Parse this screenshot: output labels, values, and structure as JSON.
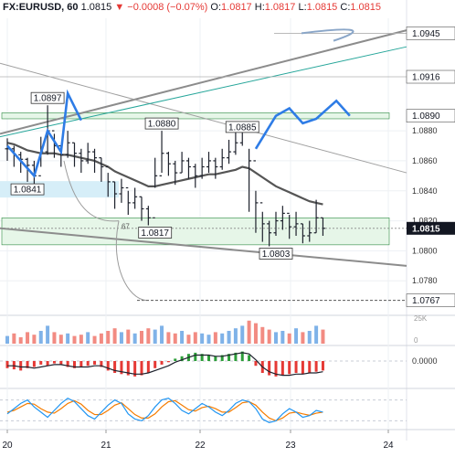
{
  "header": {
    "symbol": "FX:EURUSD, 60",
    "last": "1.0815",
    "change": "−0.0008 (−0.07%)",
    "o_label": "O:",
    "o": "1.0817",
    "h_label": "H:",
    "h": "1.0817",
    "l_label": "L:",
    "l": "1.0815",
    "c_label": "C:",
    "c": "1.0815",
    "arrow": "▼"
  },
  "colors": {
    "candle": "#1e222d",
    "ma": "#555555",
    "zigzag": "#2e7ce6",
    "zone_fill": "#e6f6e8",
    "zone_border": "#2f8a44",
    "blue_zone": "#d6eef8",
    "channel": "#8c8c8c",
    "teal_line": "#26a69a",
    "vol_red": "#f28b82",
    "vol_blue": "#7fb2e8",
    "hist_red": "#e53935",
    "hist_green": "#2e9e3a",
    "stoch_blue": "#2196f3",
    "stoch_orange": "#f57c00"
  },
  "chart_data": {
    "type": "line",
    "title": "FX:EURUSD, 60",
    "x_ticks": [
      "20",
      "21",
      "22",
      "23",
      "24"
    ],
    "y_ticks": [
      "1.0880",
      "1.0860",
      "1.0840",
      "1.0820",
      "1.0800",
      "1.0780"
    ],
    "price_badges": [
      "1.0945",
      "1.0916",
      "1.0890",
      "1.0815",
      "1.0767"
    ],
    "current_price": "1.0815",
    "ylim": [
      1.0757,
      1.0955
    ],
    "candles": {
      "close": [
        1.0868,
        1.0864,
        1.0861,
        1.0857,
        1.085,
        1.0866,
        1.088,
        1.087,
        1.0864,
        1.0872,
        1.0865,
        1.086,
        1.0866,
        1.0862,
        1.0856,
        1.0846,
        1.0838,
        1.0842,
        1.0832,
        1.0836,
        1.0828,
        1.0822,
        1.085,
        1.0865,
        1.0858,
        1.0852,
        1.086,
        1.0856,
        1.085,
        1.0856,
        1.086,
        1.0856,
        1.0862,
        1.0866,
        1.0872,
        1.088,
        1.086,
        1.0832,
        1.0818,
        1.0812,
        1.082,
        1.0825,
        1.0816,
        1.0818,
        1.081,
        1.0812,
        1.0822,
        1.0815
      ],
      "high": [
        1.0875,
        1.087,
        1.0866,
        1.0862,
        1.086,
        1.0876,
        1.0897,
        1.0878,
        1.087,
        1.088,
        1.0872,
        1.0868,
        1.0872,
        1.0868,
        1.0862,
        1.0852,
        1.0846,
        1.0848,
        1.084,
        1.0842,
        1.0836,
        1.083,
        1.0862,
        1.088,
        1.0866,
        1.086,
        1.0866,
        1.0862,
        1.0858,
        1.0862,
        1.0866,
        1.0862,
        1.0868,
        1.0874,
        1.088,
        1.0885,
        1.0868,
        1.084,
        1.0826,
        1.082,
        1.0826,
        1.083,
        1.0824,
        1.0826,
        1.0818,
        1.082,
        1.0834,
        1.0822
      ],
      "low": [
        1.086,
        1.0856,
        1.0852,
        1.0846,
        1.0844,
        1.0856,
        1.0864,
        1.0862,
        1.0856,
        1.0862,
        1.0856,
        1.0852,
        1.0858,
        1.0852,
        1.0846,
        1.0836,
        1.0828,
        1.0832,
        1.0824,
        1.0828,
        1.082,
        1.0817,
        1.0842,
        1.0852,
        1.085,
        1.0844,
        1.0852,
        1.0848,
        1.0842,
        1.0848,
        1.0852,
        1.0848,
        1.0854,
        1.0858,
        1.0864,
        1.087,
        1.0826,
        1.0812,
        1.0806,
        1.0803,
        1.081,
        1.0814,
        1.0808,
        1.081,
        1.0805,
        1.0806,
        1.0812,
        1.081
      ]
    },
    "series": [
      {
        "values": [
          1.0872,
          1.0871,
          1.0869,
          1.0867,
          1.0866,
          1.0865,
          1.0865,
          1.0865,
          1.0864,
          1.0864,
          1.0863,
          1.0862,
          1.0861,
          1.086,
          1.0858,
          1.0856,
          1.0853,
          1.0851,
          1.0849,
          1.0847,
          1.0845,
          1.0843,
          1.0843,
          1.0844,
          1.0845,
          1.0846,
          1.0847,
          1.0848,
          1.0849,
          1.085,
          1.0851,
          1.0851,
          1.0852,
          1.0853,
          1.0854,
          1.0856,
          1.0855,
          1.0852,
          1.0849,
          1.0846,
          1.0843,
          1.0841,
          1.0839,
          1.0837,
          1.0835,
          1.0833,
          1.0832,
          1.0831
        ]
      }
    ],
    "zigzag": [
      [
        0,
        1.087
      ],
      [
        4,
        1.085
      ],
      [
        6,
        1.088
      ],
      [
        8,
        1.0866
      ],
      [
        9,
        1.0905
      ],
      [
        11,
        1.0887
      ],
      [
        37,
        1.0868
      ],
      [
        40,
        1.089
      ],
      [
        42,
        1.0895
      ],
      [
        44,
        1.0885
      ],
      [
        46,
        1.0888
      ],
      [
        49,
        1.09
      ],
      [
        51,
        1.089
      ]
    ],
    "annotations": [
      "1.0897",
      "1.0880",
      "1.0885",
      "1.0841",
      "1.0817",
      "1.0803",
      "67"
    ],
    "volume": {
      "axis_labels": [
        "25K",
        "0"
      ],
      "values": [
        6,
        8,
        5,
        9,
        7,
        10,
        14,
        9,
        7,
        8,
        6,
        7,
        9,
        6,
        8,
        10,
        12,
        9,
        11,
        8,
        10,
        12,
        11,
        14,
        9,
        8,
        10,
        7,
        9,
        8,
        7,
        9,
        8,
        10,
        12,
        14,
        18,
        16,
        13,
        11,
        9,
        10,
        8,
        12,
        9,
        10,
        14,
        11
      ]
    },
    "oscillator": {
      "axis_label": "0.0000",
      "histogram": [
        -6,
        -7,
        -8,
        -6,
        -5,
        -3,
        -4,
        -2,
        -3,
        -5,
        -6,
        -5,
        -4,
        -3,
        -5,
        -8,
        -10,
        -11,
        -12,
        -13,
        -12,
        -10,
        -6,
        -3,
        -1,
        2,
        4,
        6,
        7,
        6,
        5,
        4,
        5,
        6,
        7,
        8,
        5,
        -4,
        -10,
        -12,
        -13,
        -12,
        -11,
        -10,
        -11,
        -10,
        -9,
        -8
      ],
      "signal": [
        -4,
        -4,
        -5,
        -5,
        -6,
        -5,
        -4,
        -3,
        -3,
        -4,
        -5,
        -5,
        -5,
        -4,
        -4,
        -6,
        -8,
        -9,
        -10,
        -11,
        -11,
        -10,
        -8,
        -6,
        -4,
        -1,
        1,
        3,
        5,
        5,
        5,
        4,
        4,
        5,
        6,
        7,
        6,
        1,
        -5,
        -9,
        -11,
        -12,
        -12,
        -11,
        -11,
        -10,
        -10,
        -9
      ]
    },
    "stochastic": {
      "k": [
        40,
        55,
        70,
        80,
        60,
        45,
        30,
        50,
        70,
        85,
        75,
        55,
        35,
        25,
        45,
        65,
        80,
        70,
        40,
        25,
        20,
        35,
        60,
        80,
        85,
        70,
        50,
        40,
        55,
        70,
        60,
        45,
        35,
        50,
        70,
        80,
        75,
        55,
        25,
        15,
        20,
        40,
        55,
        45,
        30,
        35,
        50,
        45
      ],
      "d": [
        45,
        50,
        60,
        70,
        68,
        55,
        45,
        42,
        55,
        70,
        78,
        68,
        50,
        38,
        38,
        50,
        65,
        72,
        55,
        38,
        28,
        28,
        40,
        60,
        75,
        78,
        65,
        52,
        48,
        58,
        62,
        55,
        45,
        45,
        58,
        72,
        75,
        65,
        45,
        28,
        20,
        28,
        42,
        45,
        40,
        36,
        42,
        45
      ]
    }
  }
}
